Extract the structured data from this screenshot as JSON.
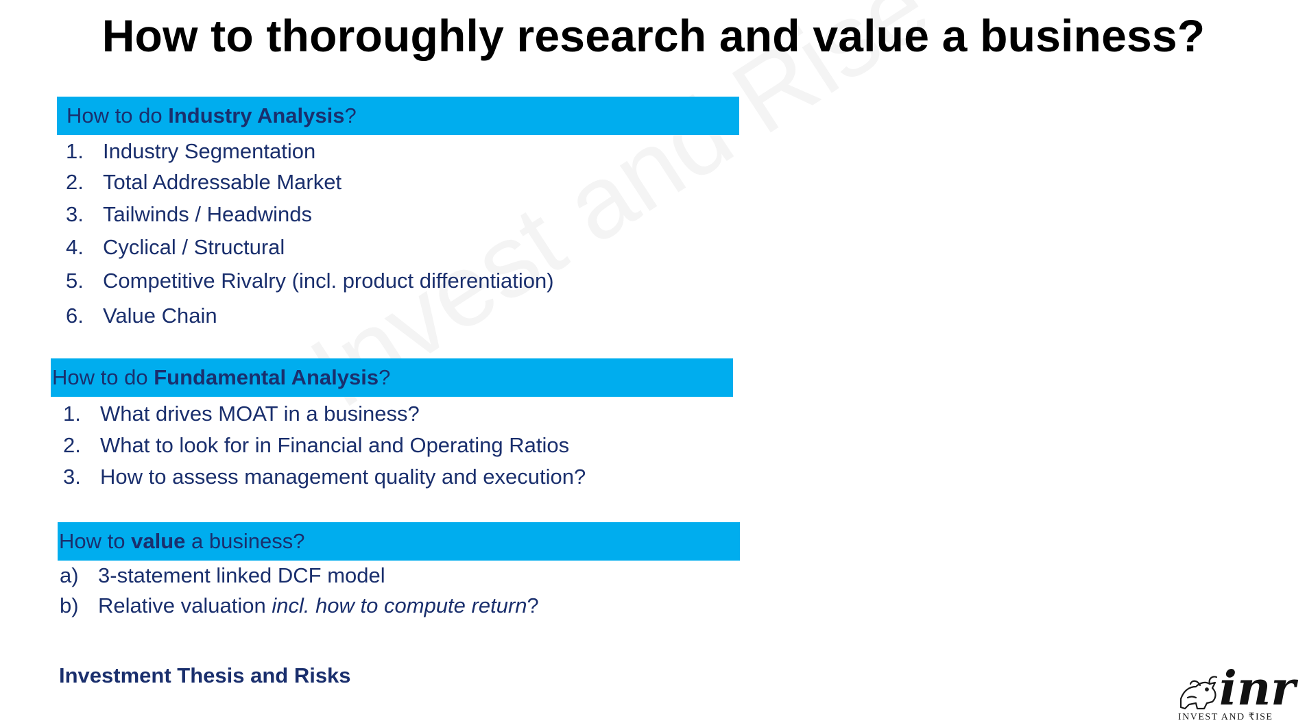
{
  "title": "How to thoroughly research and value a business?",
  "watermark": "Invest and Rise",
  "sections": {
    "industry": {
      "prefix": "How to do ",
      "bold": "Industry Analysis",
      "suffix": "?",
      "items": [
        {
          "num": "1.",
          "text": "Industry Segmentation"
        },
        {
          "num": "2.",
          "text": "Total Addressable Market"
        },
        {
          "num": "3.",
          "text": "Tailwinds / Headwinds"
        },
        {
          "num": "4.",
          "text": "Cyclical / Structural"
        },
        {
          "num": "5.",
          "text": "Competitive Rivalry (incl. product differentiation)"
        },
        {
          "num": "6.",
          "text": "Value Chain"
        }
      ]
    },
    "fundamental": {
      "prefix": "How to do ",
      "bold": "Fundamental Analysis",
      "suffix": "?",
      "items": [
        {
          "num": "1.",
          "text": "What drives MOAT in a business?"
        },
        {
          "num": "2.",
          "text": "What to look for in Financial and Operating Ratios"
        },
        {
          "num": "3.",
          "text": "How to assess management quality and execution?"
        }
      ]
    },
    "valuation": {
      "prefix": "How to ",
      "bold": "value",
      "suffix": " a business?",
      "items": [
        {
          "num": "a)",
          "text": "3-statement linked DCF model"
        },
        {
          "num": "b)",
          "text": "Relative valuation ",
          "italic": "incl. how to compute return",
          "tail": "?"
        }
      ]
    }
  },
  "thesis": "Investment Thesis and Risks",
  "logo": {
    "mark": "inr",
    "subtitle": "INVEST AND ₹ISE"
  }
}
